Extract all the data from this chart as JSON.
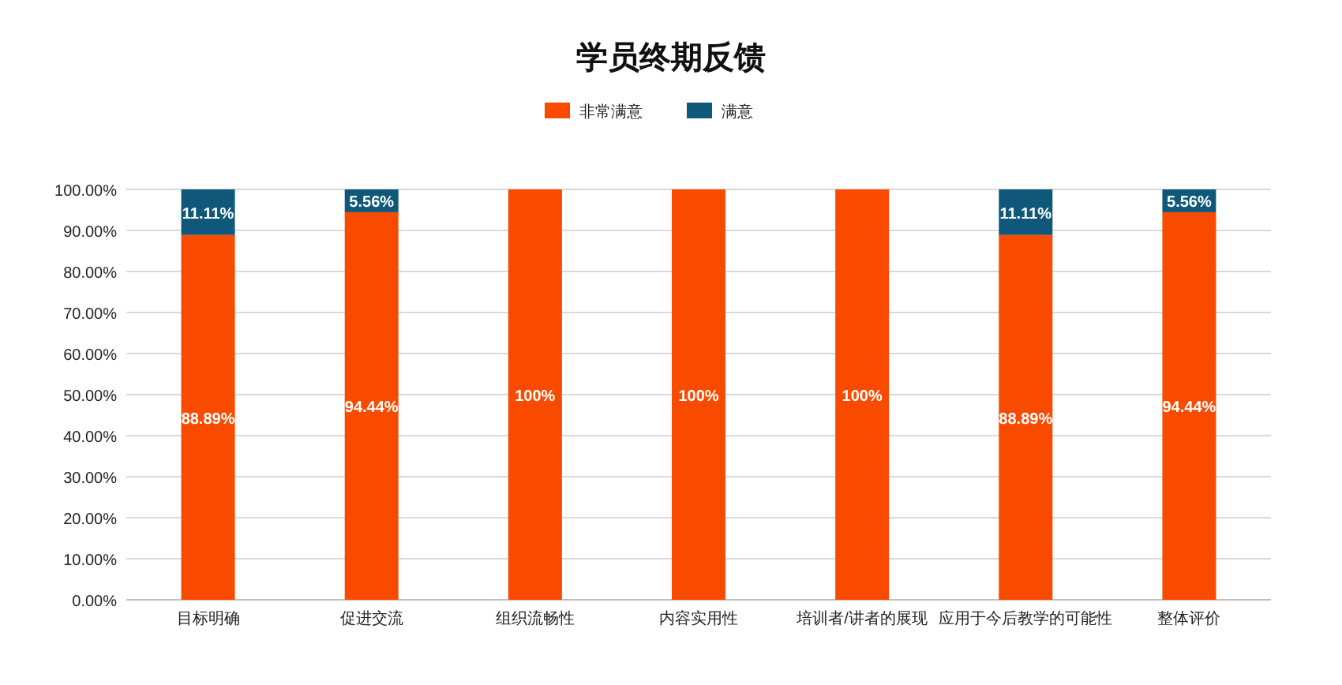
{
  "chart_data": {
    "type": "bar",
    "stacked": true,
    "title": "学员终期反馈",
    "categories": [
      "目标明确",
      "促进交流",
      "组织流畅性",
      "内容实用性",
      "培训者/讲者的展现",
      "应用于今后教学的可能性",
      "整体评价"
    ],
    "series": [
      {
        "name": "非常满意",
        "color": "#f94b00",
        "values": [
          88.89,
          94.44,
          100,
          100,
          100,
          88.89,
          94.44
        ],
        "value_labels": [
          "88.89%",
          "94.44%",
          "100%",
          "100%",
          "100%",
          "88.89%",
          "94.44%"
        ]
      },
      {
        "name": "满意",
        "color": "#10587a",
        "values": [
          11.11,
          5.56,
          null,
          null,
          null,
          11.11,
          5.56
        ],
        "value_labels": [
          "11.11%",
          "5.56%",
          null,
          null,
          null,
          "11.11%",
          "5.56%"
        ]
      }
    ],
    "ylim": [
      0,
      100
    ],
    "yticks": [
      {
        "value": 0,
        "label": "0.00%"
      },
      {
        "value": 10,
        "label": "10.00%"
      },
      {
        "value": 20,
        "label": "20.00%"
      },
      {
        "value": 30,
        "label": "30.00%"
      },
      {
        "value": 40,
        "label": "40.00%"
      },
      {
        "value": 50,
        "label": "50.00%"
      },
      {
        "value": 60,
        "label": "60.00%"
      },
      {
        "value": 70,
        "label": "70.00%"
      },
      {
        "value": 80,
        "label": "80.00%"
      },
      {
        "value": 90,
        "label": "90.00%"
      },
      {
        "value": 100,
        "label": "100.00%"
      }
    ],
    "grid": "y",
    "legend": "top"
  }
}
